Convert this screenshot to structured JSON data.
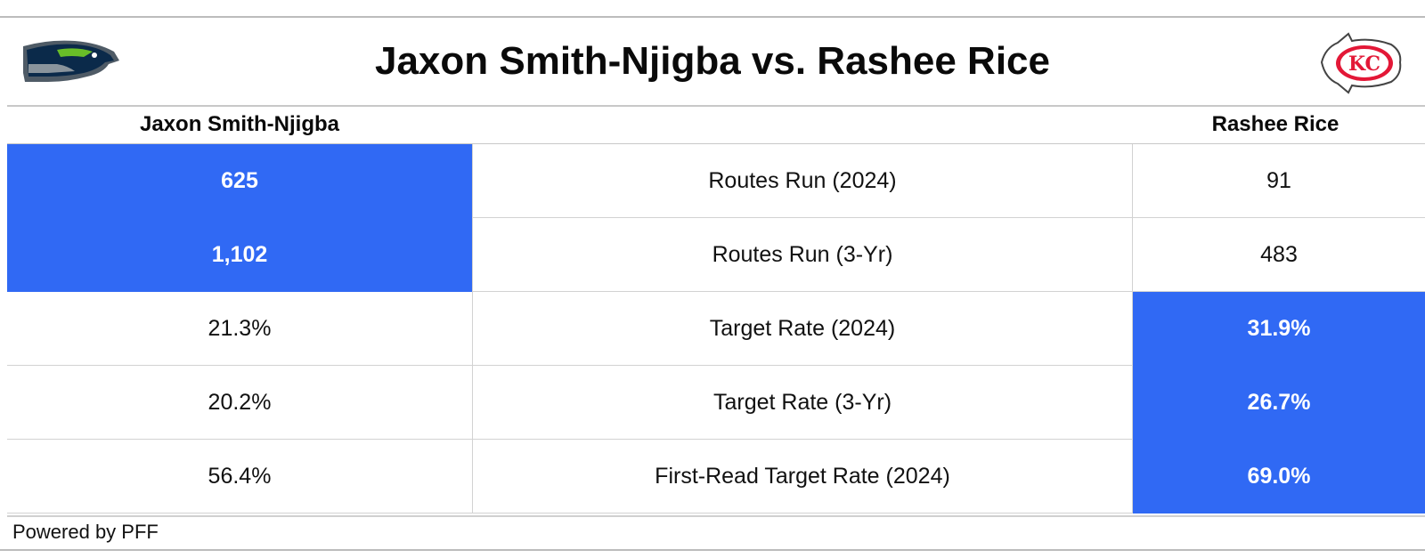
{
  "title": "Jaxon Smith-Njigba vs. Rashee Rice",
  "logos": {
    "left": "seahawks-logo",
    "right": "chiefs-logo",
    "right_text": "KC"
  },
  "colors": {
    "highlight": "#3069f4",
    "chiefs_red": "#e31837",
    "seahawks_navy": "#002244",
    "seahawks_green": "#69be28"
  },
  "chart_data": {
    "type": "table",
    "columns": [
      "Jaxon Smith-Njigba",
      "",
      "Rashee Rice"
    ],
    "rows": [
      {
        "metric": "Routes Run (2024)",
        "left": "625",
        "right": "91",
        "leader": "left"
      },
      {
        "metric": "Routes Run (3-Yr)",
        "left": "1,102",
        "right": "483",
        "leader": "left"
      },
      {
        "metric": "Target Rate (2024)",
        "left": "21.3%",
        "right": "31.9%",
        "leader": "right"
      },
      {
        "metric": "Target Rate (3-Yr)",
        "left": "20.2%",
        "right": "26.7%",
        "leader": "right"
      },
      {
        "metric": "First-Read Target Rate (2024)",
        "left": "56.4%",
        "right": "69.0%",
        "leader": "right"
      }
    ]
  },
  "footer": "Powered by PFF"
}
